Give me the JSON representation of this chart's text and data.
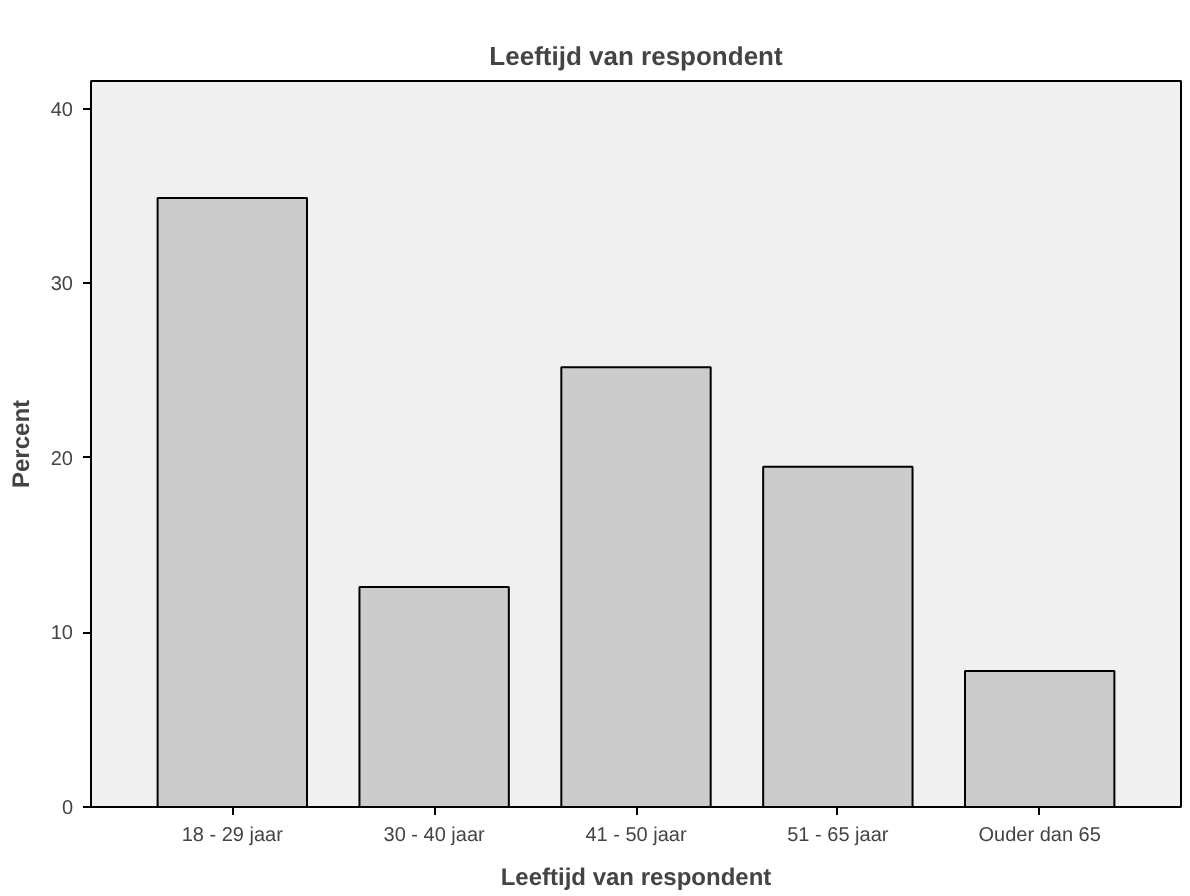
{
  "chart_data": {
    "type": "bar",
    "title": "Leeftijd van respondent",
    "xlabel": "Leeftijd van respondent",
    "ylabel": "Percent",
    "categories": [
      "18 - 29 jaar",
      "30 - 40 jaar",
      "41 - 50 jaar",
      "51 - 65 jaar",
      "Ouder dan 65"
    ],
    "values": [
      34.9,
      12.6,
      25.2,
      19.5,
      7.8
    ],
    "color": "#cccccc",
    "ylim": [
      0,
      41.6
    ],
    "yticks": [
      0,
      10,
      20,
      30,
      40
    ],
    "grid": false
  }
}
